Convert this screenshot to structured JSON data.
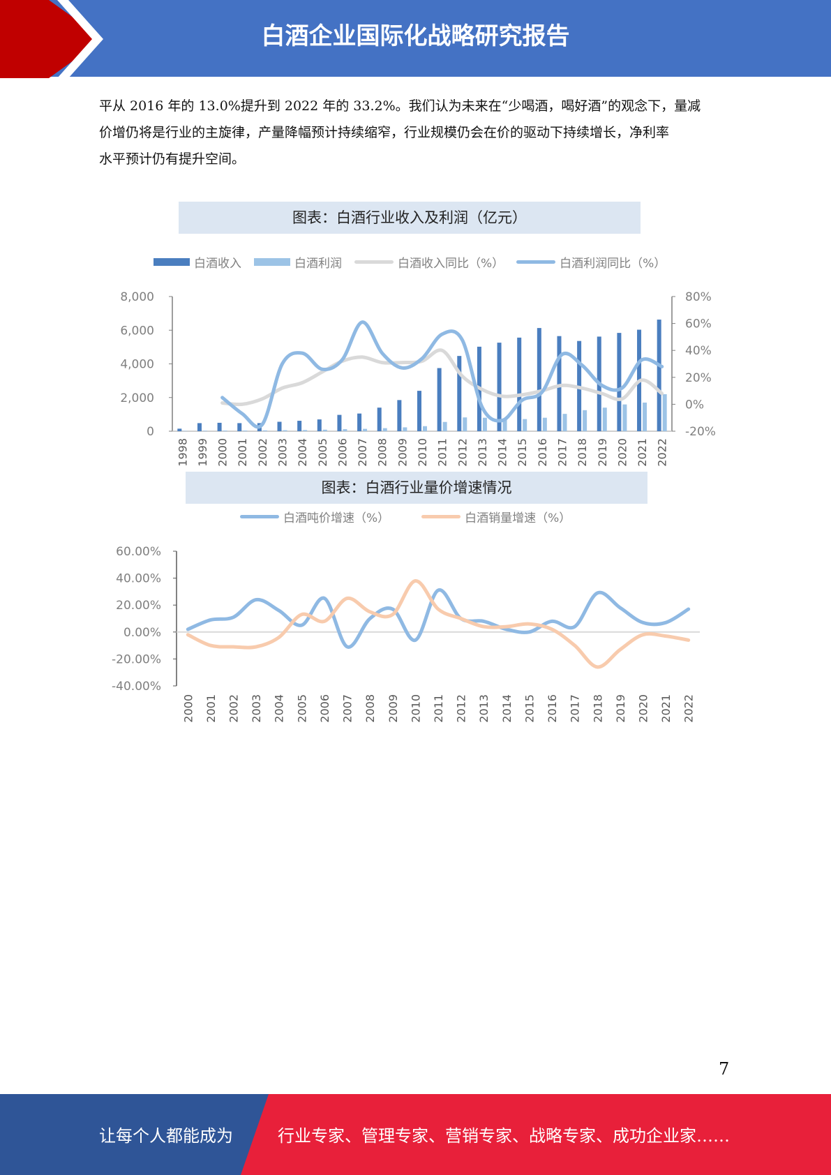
{
  "header": {
    "title": "白酒企业国际化战略研究报告"
  },
  "paragraph": {
    "lines": [
      "平从 2016 年的 13.0%提升到 2022 年的 33.2%。我们认为未来在“少喝酒，喝好酒”的观念下，量减",
      "价增仍将是行业的主旋律，产量降幅预计持续缩窄，行业规模仍会在价的驱动下持续增长，净利率",
      "水平预计仍有提升空间。"
    ]
  },
  "chart_data": [
    {
      "type": "bar",
      "title": "图表：白酒行业收入及利润（亿元）",
      "categories": [
        "1998",
        "1999",
        "2000",
        "2001",
        "2002",
        "2003",
        "2004",
        "2005",
        "2006",
        "2007",
        "2008",
        "2009",
        "2010",
        "2011",
        "2012",
        "2013",
        "2014",
        "2015",
        "2016",
        "2017",
        "2018",
        "2019",
        "2020",
        "2021",
        "2022"
      ],
      "y_left": {
        "ylim": [
          0,
          8000
        ],
        "ticks": [
          "0",
          "2,000",
          "4,000",
          "6,000",
          "8,000"
        ]
      },
      "y_right": {
        "ylim": [
          -20,
          80
        ],
        "ticks": [
          "-20%",
          "0%",
          "20%",
          "40%",
          "60%",
          "80%"
        ]
      },
      "legend_position": "top",
      "series": [
        {
          "name": "白酒收入",
          "kind": "bar",
          "axis": "left",
          "color": "#4a7ebf",
          "values": [
            150,
            480,
            500,
            480,
            480,
            560,
            620,
            700,
            970,
            1050,
            1400,
            1850,
            2400,
            3750,
            4470,
            5020,
            5260,
            5560,
            6130,
            5650,
            5360,
            5620,
            5840,
            6030,
            6630
          ]
        },
        {
          "name": "白酒利润",
          "kind": "bar",
          "axis": "left",
          "color": "#9cc3e6",
          "values": [
            20,
            30,
            40,
            40,
            50,
            60,
            70,
            90,
            120,
            140,
            180,
            230,
            300,
            550,
            820,
            800,
            700,
            720,
            800,
            1030,
            1250,
            1400,
            1590,
            1700,
            2200
          ]
        },
        {
          "name": "白酒收入同比（%）",
          "kind": "line",
          "axis": "right",
          "color": "#d9d9d9",
          "values": [
            null,
            null,
            1,
            0,
            4,
            12,
            16,
            24,
            32,
            35,
            31,
            31,
            32,
            40,
            21,
            11,
            6,
            7,
            10,
            14,
            12,
            8,
            4,
            18,
            8
          ]
        },
        {
          "name": "白酒利润同比（%）",
          "kind": "line",
          "axis": "right",
          "color": "#8fb9e3",
          "values": [
            null,
            null,
            5,
            -7,
            -15,
            30,
            38,
            26,
            33,
            61,
            38,
            27,
            34,
            52,
            48,
            -2,
            -12,
            3,
            9,
            37,
            29,
            14,
            12,
            33,
            28
          ]
        }
      ]
    },
    {
      "type": "line",
      "title": "图表：白酒行业量价增速情况",
      "categories": [
        "2000",
        "2001",
        "2002",
        "2003",
        "2004",
        "2005",
        "2006",
        "2007",
        "2008",
        "2009",
        "2010",
        "2011",
        "2012",
        "2013",
        "2014",
        "2015",
        "2016",
        "2017",
        "2018",
        "2019",
        "2020",
        "2021",
        "2022"
      ],
      "ylim": [
        -40,
        60
      ],
      "ticks": [
        "-40.00%",
        "-20.00%",
        "0.00%",
        "20.00%",
        "40.00%",
        "60.00%"
      ],
      "legend_position": "top",
      "series": [
        {
          "name": "白酒吨价增速（%）",
          "color": "#8fb9e3",
          "values": [
            2,
            9,
            11,
            24,
            16,
            5,
            25,
            -11,
            10,
            17,
            -6,
            31,
            10,
            8,
            2,
            0,
            8,
            4,
            29,
            18,
            7,
            7,
            17
          ]
        },
        {
          "name": "白酒销量增速（%）",
          "color": "#f8cbad",
          "values": [
            -2,
            -10,
            -11,
            -11,
            -4,
            13,
            8,
            25,
            15,
            13,
            38,
            17,
            10,
            4,
            4,
            6,
            2,
            -10,
            -26,
            -13,
            -2,
            -3,
            -6
          ]
        }
      ]
    }
  ],
  "page_number": "7",
  "footer": {
    "left_text": "让每个人都能成为",
    "right_text": "行业专家、管理专家、营销专家、战略专家、成功企业家……"
  },
  "colors": {
    "header_blue": "#4472c4",
    "header_red": "#c00000",
    "footer_blue": "#2f5597",
    "footer_red": "#e8203a"
  }
}
